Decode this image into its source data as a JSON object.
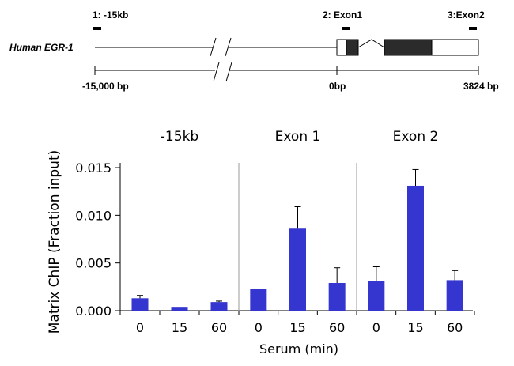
{
  "gene_map": {
    "gene_name": "Human EGR-1",
    "regions": [
      {
        "label": "1: -15kb"
      },
      {
        "label": "2: Exon1"
      },
      {
        "label": "3:Exon2"
      }
    ],
    "scale": {
      "left_label": "-15,000  bp",
      "mid_label": "0bp",
      "right_label": "3824 bp"
    }
  },
  "colors": {
    "bar": "#3535cf",
    "exon": "#2b2b2b",
    "axis": "#000000",
    "divider": "#9a9a9a"
  },
  "chart_data": {
    "type": "bar",
    "categories": [
      "0",
      "15",
      "60"
    ],
    "panels": [
      {
        "name": "-15kb",
        "values": [
          0.0013,
          0.0004,
          0.0009
        ],
        "errors": [
          0.0003,
          0.0,
          0.0001
        ]
      },
      {
        "name": "Exon 1",
        "values": [
          0.0023,
          0.0086,
          0.0029
        ],
        "errors": [
          0.0,
          0.0023,
          0.0016
        ]
      },
      {
        "name": "Exon 2",
        "values": [
          0.0031,
          0.0131,
          0.0032
        ],
        "errors": [
          0.0015,
          0.0017,
          0.001
        ]
      }
    ],
    "xlabel": "Serum (min)",
    "ylabel": "Matrix ChIP (Fraction input)",
    "ylim": [
      0,
      0.0155
    ],
    "yticks": [
      0.0,
      0.005,
      0.01,
      0.015
    ],
    "ytick_labels": [
      "0.000",
      "0.005",
      "0.010",
      "0.015"
    ]
  }
}
